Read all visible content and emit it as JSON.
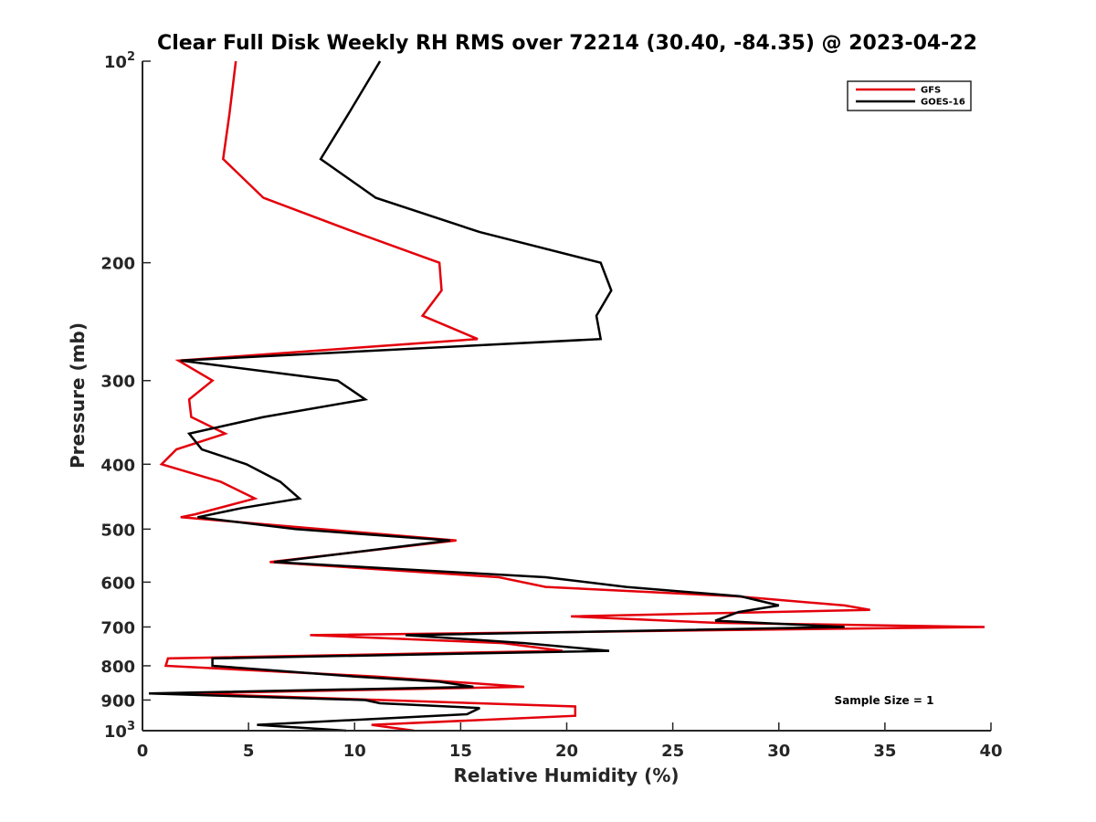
{
  "chart_data": {
    "type": "line",
    "title": "Clear Full Disk Weekly RH RMS over 72214 (30.40, -84.35) @ 2023-04-22",
    "xlabel": "Relative Humidity (%)",
    "ylabel": "Pressure (mb)",
    "xlim": [
      0,
      40
    ],
    "ylim": [
      1000,
      100
    ],
    "yscale": "log-reversed",
    "x_ticks": [
      {
        "value": 0,
        "label": "0"
      },
      {
        "value": 5,
        "label": "5"
      },
      {
        "value": 10,
        "label": "10"
      },
      {
        "value": 15,
        "label": "15"
      },
      {
        "value": 20,
        "label": "20"
      },
      {
        "value": 25,
        "label": "25"
      },
      {
        "value": 30,
        "label": "30"
      },
      {
        "value": 35,
        "label": "35"
      },
      {
        "value": 40,
        "label": "40"
      }
    ],
    "y_ticks": [
      {
        "value": 100,
        "label": "10",
        "sup": "2"
      },
      {
        "value": 200,
        "label": "200",
        "sup": ""
      },
      {
        "value": 300,
        "label": "300",
        "sup": ""
      },
      {
        "value": 400,
        "label": "400",
        "sup": ""
      },
      {
        "value": 500,
        "label": "500",
        "sup": ""
      },
      {
        "value": 600,
        "label": "600",
        "sup": ""
      },
      {
        "value": 700,
        "label": "700",
        "sup": ""
      },
      {
        "value": 800,
        "label": "800",
        "sup": ""
      },
      {
        "value": 900,
        "label": "900",
        "sup": ""
      },
      {
        "value": 1000,
        "label": "10",
        "sup": "3"
      }
    ],
    "legend_position": "top-right",
    "annotation": "Sample Size = 1",
    "series": [
      {
        "name": "GFS",
        "color": "#e3000b",
        "points": [
          [
            4.4,
            100
          ],
          [
            4.1,
            120
          ],
          [
            3.8,
            140
          ],
          [
            5.7,
            160
          ],
          [
            10,
            180
          ],
          [
            14,
            200
          ],
          [
            14.1,
            220
          ],
          [
            13.2,
            240
          ],
          [
            15.8,
            260
          ],
          [
            1.7,
            280
          ],
          [
            3.3,
            300
          ],
          [
            2.2,
            320
          ],
          [
            2.3,
            340
          ],
          [
            3.9,
            360
          ],
          [
            1.6,
            380
          ],
          [
            0.9,
            400
          ],
          [
            3.7,
            425
          ],
          [
            5.3,
            450
          ],
          [
            2.5,
            475
          ],
          [
            1.8,
            480
          ],
          [
            14.8,
            520
          ],
          [
            6,
            560
          ],
          [
            16.8,
            590
          ],
          [
            19,
            610
          ],
          [
            28,
            630
          ],
          [
            33.1,
            650
          ],
          [
            34.3,
            660
          ],
          [
            20.2,
            675
          ],
          [
            27,
            690
          ],
          [
            39.7,
            700
          ],
          [
            7.9,
            720
          ],
          [
            17,
            740
          ],
          [
            19.8,
            760
          ],
          [
            1.2,
            780
          ],
          [
            1.1,
            800
          ],
          [
            11,
            830
          ],
          [
            18,
            860
          ],
          [
            2,
            880
          ],
          [
            20.4,
            920
          ],
          [
            20.4,
            950
          ],
          [
            10.8,
            980
          ],
          [
            12.8,
            1000
          ]
        ]
      },
      {
        "name": "GOES-16",
        "color": "#000000",
        "points": [
          [
            11.2,
            100
          ],
          [
            9.7,
            120
          ],
          [
            8.4,
            140
          ],
          [
            11,
            160
          ],
          [
            15.9,
            180
          ],
          [
            21.6,
            200
          ],
          [
            22.1,
            220
          ],
          [
            21.4,
            240
          ],
          [
            21.6,
            260
          ],
          [
            1.8,
            280
          ],
          [
            9.2,
            300
          ],
          [
            10.5,
            320
          ],
          [
            5.7,
            340
          ],
          [
            2.2,
            360
          ],
          [
            2.8,
            380
          ],
          [
            4.9,
            400
          ],
          [
            6.5,
            425
          ],
          [
            7.4,
            450
          ],
          [
            4.7,
            465
          ],
          [
            2.6,
            480
          ],
          [
            7.2,
            500
          ],
          [
            14.5,
            520
          ],
          [
            6.2,
            560
          ],
          [
            19,
            590
          ],
          [
            22.8,
            610
          ],
          [
            28.2,
            630
          ],
          [
            30,
            650
          ],
          [
            28.1,
            665
          ],
          [
            27,
            685
          ],
          [
            33.1,
            700
          ],
          [
            12.4,
            720
          ],
          [
            18,
            740
          ],
          [
            22,
            760
          ],
          [
            3.3,
            780
          ],
          [
            3.3,
            800
          ],
          [
            10,
            830
          ],
          [
            14,
            845
          ],
          [
            15.6,
            860
          ],
          [
            0.3,
            880
          ],
          [
            10.5,
            900
          ],
          [
            11.2,
            910
          ],
          [
            15.9,
            925
          ],
          [
            15.3,
            945
          ],
          [
            5.4,
            980
          ],
          [
            9.6,
            1000
          ]
        ]
      }
    ]
  }
}
